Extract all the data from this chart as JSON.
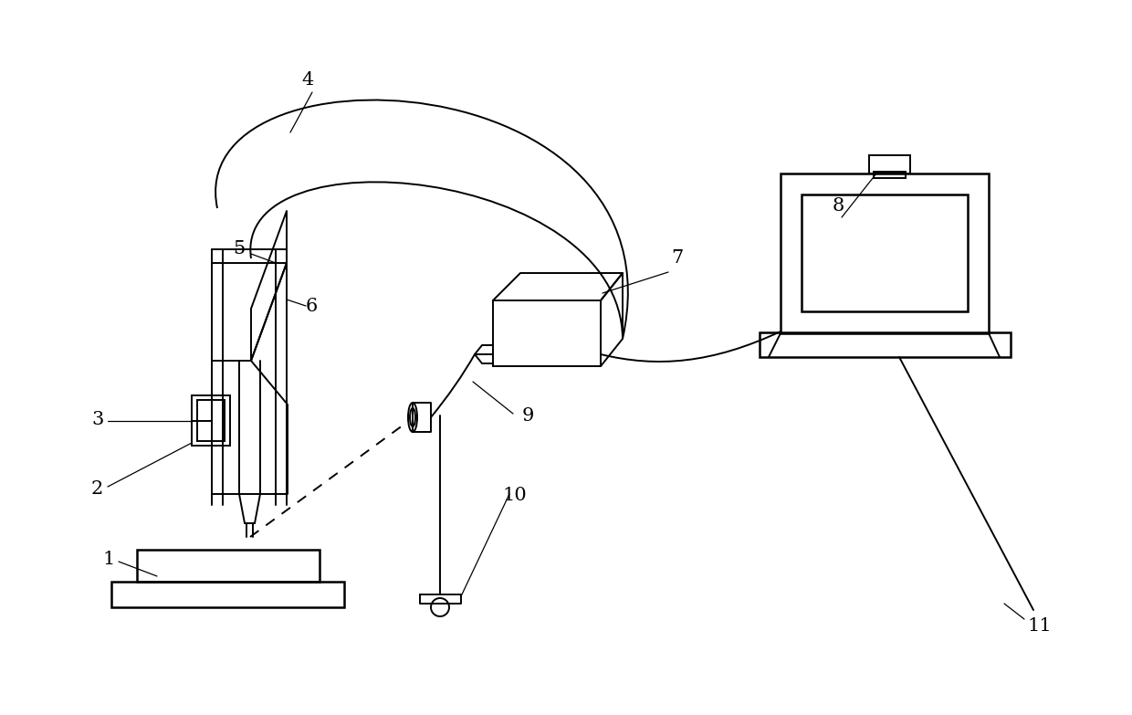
{
  "bg": "#ffffff",
  "lc": "#000000",
  "lw": 1.8,
  "lw_t": 1.4,
  "fig_w": 12.4,
  "fig_h": 7.83,
  "xlim": [
    0,
    12.4
  ],
  "ylim": [
    0,
    7.83
  ]
}
